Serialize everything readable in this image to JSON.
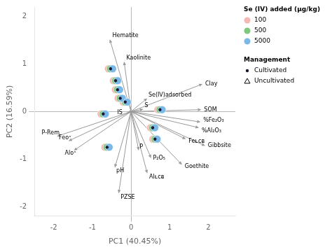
{
  "chart_data": {
    "type": "scatter",
    "xlabel": "PC1 (40.45%)",
    "ylabel": "PC2 (16.59%)",
    "xlim": [
      -2.5,
      2.7
    ],
    "ylim": [
      -2.2,
      2.2
    ],
    "xticks": [
      -2,
      -1,
      0,
      1,
      2
    ],
    "yticks": [
      -2,
      -1,
      0,
      1,
      2
    ],
    "grid": false,
    "legend": "right",
    "arrow_color": "#999999",
    "arrows": [
      {
        "label": "Hematite",
        "x": -0.55,
        "y": 1.52,
        "label_x": -0.48,
        "label_y": 1.6,
        "align": "left"
      },
      {
        "label": "Kaolinite",
        "x": -0.18,
        "y": 1.05,
        "label_x": -0.12,
        "label_y": 1.13,
        "align": "left"
      },
      {
        "label": "Clay",
        "x": 1.85,
        "y": 0.58,
        "label_x": 1.92,
        "label_y": 0.58,
        "align": "left"
      },
      {
        "label": "Se(IV)adsorbed",
        "x": 0.42,
        "y": 0.28,
        "label_x": 0.45,
        "label_y": 0.34,
        "align": "left"
      },
      {
        "label": "SOM",
        "x": 1.82,
        "y": 0.04,
        "label_x": 1.89,
        "label_y": 0.04,
        "align": "left"
      },
      {
        "label": "S",
        "x": 0.32,
        "y": 0.05,
        "label_x": 0.35,
        "label_y": 0.12,
        "align": "left"
      },
      {
        "label": "%Fe₂O₃",
        "x": 1.8,
        "y": -0.22,
        "label_x": 1.87,
        "label_y": -0.19,
        "align": "left"
      },
      {
        "label": "%Al₂O₃",
        "x": 1.76,
        "y": -0.34,
        "label_x": 1.83,
        "label_y": -0.4,
        "align": "left"
      },
      {
        "label": "Feᴌᴄᴃ",
        "x": 1.42,
        "y": -0.58,
        "label_x": 1.49,
        "label_y": -0.62,
        "align": "left"
      },
      {
        "label": "Gibbsite",
        "x": 1.92,
        "y": -0.72,
        "label_x": 1.99,
        "label_y": -0.72,
        "align": "left"
      },
      {
        "label": "P",
        "x": 0.2,
        "y": -0.82,
        "label_x": 0.22,
        "label_y": -0.74,
        "align": "left"
      },
      {
        "label": "P₂O₅",
        "x": 0.52,
        "y": -0.98,
        "label_x": 0.57,
        "label_y": -0.98,
        "align": "left"
      },
      {
        "label": "Goethite",
        "x": 1.32,
        "y": -1.12,
        "label_x": 1.39,
        "label_y": -1.15,
        "align": "left"
      },
      {
        "label": "Alᴌᴄᴃ",
        "x": 0.42,
        "y": -1.3,
        "label_x": 0.47,
        "label_y": -1.37,
        "align": "left"
      },
      {
        "label": "pH",
        "x": -0.42,
        "y": -1.18,
        "label_x": -0.38,
        "label_y": -1.24,
        "align": "left"
      },
      {
        "label": "PZSE",
        "x": -0.32,
        "y": -1.72,
        "label_x": -0.27,
        "label_y": -1.8,
        "align": "left"
      },
      {
        "label": "Feᴏˣ",
        "x": -1.62,
        "y": -0.62,
        "label_x": -1.55,
        "label_y": -0.55,
        "align": "right"
      },
      {
        "label": "Alᴏˣ",
        "x": -1.48,
        "y": -0.82,
        "label_x": -1.42,
        "label_y": -0.88,
        "align": "right"
      },
      {
        "label": "P-Rem",
        "x": -1.92,
        "y": -0.52,
        "label_x": -1.85,
        "label_y": -0.45,
        "align": "right"
      },
      {
        "label": "IS",
        "x": -0.1,
        "y": -0.02,
        "label_x": -0.22,
        "label_y": -0.02,
        "align": "right"
      }
    ],
    "legend_groups": [
      {
        "title": "Se (IV) added (μg/kg)",
        "series": [
          {
            "name": "100",
            "color": "#f5b8b2",
            "marker": "circle",
            "x": [
              -0.53,
              -0.4,
              -0.35,
              -0.28,
              -0.15,
              0.75,
              -0.72,
              0.56,
              -0.62,
              0.62
            ],
            "y": [
              0.9,
              0.65,
              0.46,
              0.28,
              0.2,
              0.04,
              -0.05,
              -0.34,
              -0.75,
              -0.58
            ]
          },
          {
            "name": "500",
            "color": "#7ec87e",
            "marker": "circle",
            "x": [
              -0.53,
              -0.4,
              -0.35,
              -0.28,
              -0.15,
              0.75,
              -0.72,
              0.56,
              -0.62,
              0.62
            ],
            "y": [
              0.9,
              0.65,
              0.46,
              0.28,
              0.2,
              0.04,
              -0.05,
              -0.34,
              -0.75,
              -0.58
            ]
          },
          {
            "name": "5000",
            "color": "#7ab8e8",
            "marker": "circle",
            "x": [
              -0.53,
              -0.4,
              -0.35,
              -0.28,
              -0.15,
              0.75,
              -0.72,
              0.56,
              -0.62,
              0.62
            ],
            "y": [
              0.9,
              0.65,
              0.46,
              0.28,
              0.2,
              0.04,
              -0.05,
              -0.34,
              -0.75,
              -0.58
            ]
          }
        ]
      },
      {
        "title": "Management",
        "series": [
          {
            "name": "Cultivated",
            "color": "#1a1a2e",
            "marker": "dot",
            "x": [
              -0.53,
              -0.4,
              -0.35,
              -0.28,
              -0.15,
              0.75,
              -0.72,
              0.56,
              -0.62,
              0.62
            ],
            "y": [
              0.9,
              0.65,
              0.46,
              0.28,
              0.2,
              0.04,
              -0.05,
              -0.34,
              -0.75,
              -0.58
            ]
          },
          {
            "name": "Uncultivated",
            "color": "#000000",
            "marker": "triangle",
            "x": [],
            "y": []
          }
        ]
      }
    ]
  }
}
